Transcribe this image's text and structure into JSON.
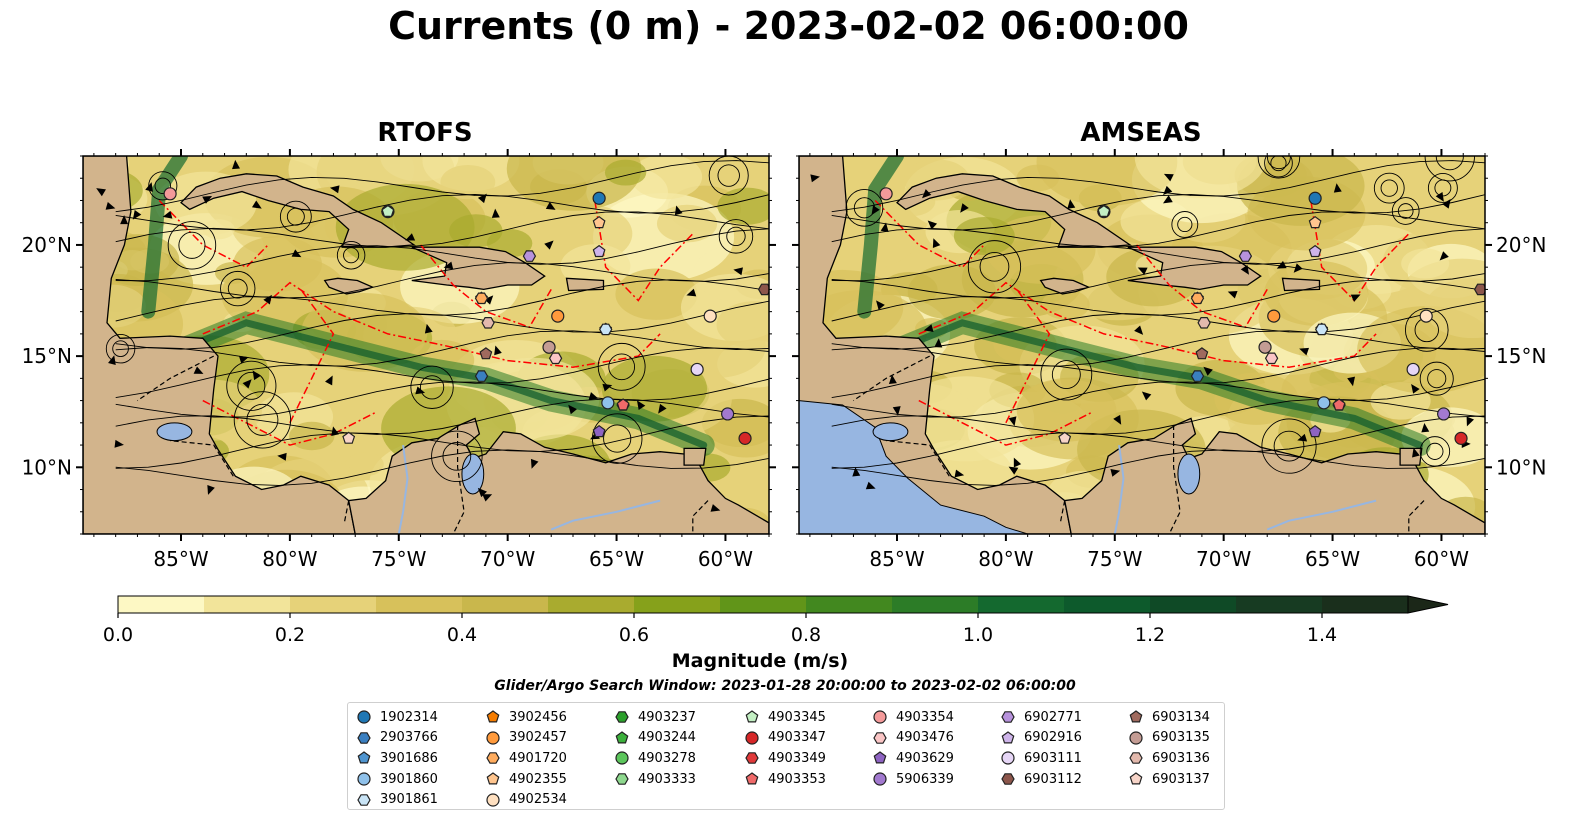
{
  "title": "Currents (0 m) - 2023-02-02 06:00:00",
  "panels": [
    {
      "title": "RTOFS"
    },
    {
      "title": "AMSEAS"
    }
  ],
  "lat_ticks": [
    "20°N",
    "15°N",
    "10°N"
  ],
  "lon_ticks": [
    "85°W",
    "80°W",
    "75°W",
    "70°W",
    "65°W",
    "60°W"
  ],
  "map_extent": {
    "lon": [
      -89.5,
      -58.0
    ],
    "lat": [
      7.0,
      24.0
    ]
  },
  "colorbar": {
    "label": "Magnitude (m/s)",
    "ticks": [
      "0.0",
      "0.2",
      "0.4",
      "0.6",
      "0.8",
      "1.0",
      "1.2",
      "1.4"
    ],
    "range": [
      0.0,
      1.5
    ],
    "colors": [
      "#fdf8c4",
      "#f2e49a",
      "#e6d279",
      "#d7c15b",
      "#c9b74c",
      "#a9ab2f",
      "#86a11b",
      "#619519",
      "#42881f",
      "#2c7c27",
      "#14692f",
      "#0d5a2c",
      "#0f4a26",
      "#173b22",
      "#1a2f1c",
      "#1b2718"
    ]
  },
  "search_window": "Glider/Argo Search Window: 2023-01-28 20:00:00 to 2023-02-02 06:00:00",
  "colors": {
    "land": "#d2b48c",
    "lake": "#97b6e1",
    "eez": "#ff0000"
  },
  "floats": [
    {
      "id": "1902314",
      "marker": "circle",
      "color": "#1f77b4"
    },
    {
      "id": "2903766",
      "marker": "hexagon",
      "color": "#3a7fc0"
    },
    {
      "id": "3901686",
      "marker": "pentagon",
      "color": "#4f95d0"
    },
    {
      "id": "3901860",
      "marker": "circle",
      "color": "#8fc1ea"
    },
    {
      "id": "3901861",
      "marker": "hexagon",
      "color": "#c9e4f6"
    },
    {
      "id": "3902456",
      "marker": "pentagon",
      "color": "#f57c00"
    },
    {
      "id": "3902457",
      "marker": "circle",
      "color": "#ff9a3c"
    },
    {
      "id": "4901720",
      "marker": "hexagon",
      "color": "#ffac5e"
    },
    {
      "id": "4902355",
      "marker": "pentagon",
      "color": "#ffc58e"
    },
    {
      "id": "4902534",
      "marker": "circle",
      "color": "#ffe0c0"
    },
    {
      "id": "4903237",
      "marker": "hexagon",
      "color": "#2ca02c"
    },
    {
      "id": "4903244",
      "marker": "pentagon",
      "color": "#3cb03c"
    },
    {
      "id": "4903278",
      "marker": "circle",
      "color": "#5cc65c"
    },
    {
      "id": "4903333",
      "marker": "hexagon",
      "color": "#8ed88e"
    },
    {
      "id": "4903345",
      "marker": "pentagon",
      "color": "#c3efc3"
    },
    {
      "id": "4903347",
      "marker": "circle",
      "color": "#d62728"
    },
    {
      "id": "4903349",
      "marker": "hexagon",
      "color": "#e0393a"
    },
    {
      "id": "4903353",
      "marker": "pentagon",
      "color": "#f06a6a"
    },
    {
      "id": "4903354",
      "marker": "circle",
      "color": "#f49a9a"
    },
    {
      "id": "4903476",
      "marker": "hexagon",
      "color": "#fac5c5"
    },
    {
      "id": "4903629",
      "marker": "pentagon",
      "color": "#8e63c2"
    },
    {
      "id": "5906339",
      "marker": "circle",
      "color": "#a279cf"
    },
    {
      "id": "6902771",
      "marker": "hexagon",
      "color": "#b792dc"
    },
    {
      "id": "6902916",
      "marker": "pentagon",
      "color": "#ceb4ea"
    },
    {
      "id": "6903111",
      "marker": "circle",
      "color": "#e6d6f6"
    },
    {
      "id": "6903112",
      "marker": "hexagon",
      "color": "#8c564b"
    },
    {
      "id": "6903134",
      "marker": "pentagon",
      "color": "#a06a5e"
    },
    {
      "id": "6903135",
      "marker": "circle",
      "color": "#c49c94"
    },
    {
      "id": "6903136",
      "marker": "hexagon",
      "color": "#e3b9ad"
    },
    {
      "id": "6903137",
      "marker": "pentagon",
      "color": "#f7d4c8"
    }
  ],
  "positions": [
    {
      "id": "1902314",
      "lon": -65.8,
      "lat": 22.1
    },
    {
      "id": "2903766",
      "lon": -71.2,
      "lat": 14.1
    },
    {
      "id": "3901686",
      "lon": -65.5,
      "lat": 16.2
    },
    {
      "id": "3901860",
      "lon": -65.4,
      "lat": 12.9
    },
    {
      "id": "3901861",
      "lon": -65.5,
      "lat": 16.2
    },
    {
      "id": "3902456",
      "lon": -71.2,
      "lat": 17.6
    },
    {
      "id": "3902457",
      "lon": -67.7,
      "lat": 16.8
    },
    {
      "id": "4901720",
      "lon": -71.2,
      "lat": 17.6
    },
    {
      "id": "4902355",
      "lon": -65.8,
      "lat": 21.0
    },
    {
      "id": "4902534",
      "lon": -60.7,
      "lat": 16.8
    },
    {
      "id": "4903237",
      "lon": -75.5,
      "lat": 21.5
    },
    {
      "id": "4903244",
      "lon": -75.5,
      "lat": 21.5
    },
    {
      "id": "4903278",
      "lon": -75.5,
      "lat": 21.5
    },
    {
      "id": "4903333",
      "lon": -75.5,
      "lat": 21.5
    },
    {
      "id": "4903345",
      "lon": -75.5,
      "lat": 21.5
    },
    {
      "id": "4903347",
      "lon": -59.1,
      "lat": 11.3
    },
    {
      "id": "4903349",
      "lon": -64.7,
      "lat": 12.8
    },
    {
      "id": "4903353",
      "lon": -64.7,
      "lat": 12.8
    },
    {
      "id": "4903354",
      "lon": -85.5,
      "lat": 22.3
    },
    {
      "id": "4903476",
      "lon": -67.8,
      "lat": 14.9
    },
    {
      "id": "4903629",
      "lon": -65.8,
      "lat": 11.6
    },
    {
      "id": "5906339",
      "lon": -59.9,
      "lat": 12.4
    },
    {
      "id": "6902771",
      "lon": -69.0,
      "lat": 19.5
    },
    {
      "id": "6902916",
      "lon": -65.8,
      "lat": 19.7
    },
    {
      "id": "6903111",
      "lon": -61.3,
      "lat": 14.4
    },
    {
      "id": "6903112",
      "lon": -58.2,
      "lat": 18.0
    },
    {
      "id": "6903134",
      "lon": -71.0,
      "lat": 15.1
    },
    {
      "id": "6903135",
      "lon": -68.1,
      "lat": 15.4
    },
    {
      "id": "6903136",
      "lon": -70.9,
      "lat": 16.5
    },
    {
      "id": "6903137",
      "lon": -77.3,
      "lat": 11.3
    }
  ]
}
